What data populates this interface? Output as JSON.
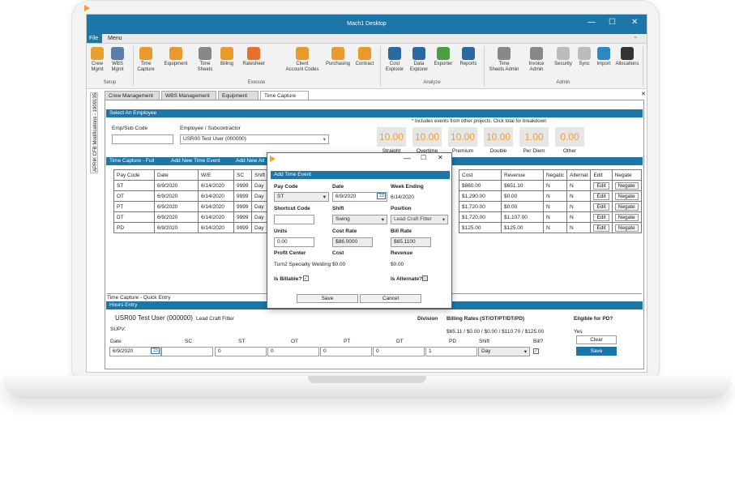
{
  "window": {
    "title": "Mach1 Desktop",
    "min": "—",
    "max": "☐",
    "close": "✕"
  },
  "menu": {
    "file": "File",
    "menu": "Menu"
  },
  "ribbon": {
    "buttons": [
      {
        "name": "crew-mgmt",
        "label": "Crew\nMgmt",
        "color": "#e8a030"
      },
      {
        "name": "wbs-mgmt",
        "label": "WBS\nMgmt",
        "color": "#5a7fa8"
      },
      {
        "name": "time-capture",
        "label": "Time\nCapture",
        "color": "#e89a2a"
      },
      {
        "name": "equipment",
        "label": "Equipment",
        "color": "#e89a2a"
      },
      {
        "name": "time-sheets",
        "label": "Time\nSheets",
        "color": "#888"
      },
      {
        "name": "billing",
        "label": "Billing",
        "color": "#e89a2a"
      },
      {
        "name": "ratesheet",
        "label": "Ratesheet",
        "color": "#e8702a"
      },
      {
        "name": "client-account-codes",
        "label": "Client\nAccount Codes",
        "color": "#e89a2a"
      },
      {
        "name": "purchasing",
        "label": "Purchasing",
        "color": "#e89a2a"
      },
      {
        "name": "contract",
        "label": "Contract",
        "color": "#e89a2a"
      },
      {
        "name": "cost-explorer",
        "label": "Cost\nExplorer",
        "color": "#2a6aa0"
      },
      {
        "name": "data-explorer",
        "label": "Data\nExplorer",
        "color": "#2a6aa0"
      },
      {
        "name": "exporter",
        "label": "Exporter",
        "color": "#4aa040"
      },
      {
        "name": "reports",
        "label": "Reports",
        "color": "#2a6aa0"
      },
      {
        "name": "time-sheets-admin",
        "label": "Time\nSheets Admin",
        "color": "#888"
      },
      {
        "name": "invoice-admin",
        "label": "Invoice\nAdmin",
        "color": "#888"
      },
      {
        "name": "security",
        "label": "Security",
        "color": "#bbb"
      },
      {
        "name": "sync",
        "label": "Sync",
        "color": "#bbb"
      },
      {
        "name": "import",
        "label": "Import",
        "color": "#2a8ac0"
      },
      {
        "name": "allocations",
        "label": "Allocations",
        "color": "#333"
      }
    ],
    "groups": {
      "setup": "Setup",
      "execute": "Execute",
      "analyze": "Analyze",
      "admin": "Admin"
    }
  },
  "tabs": [
    "Crew Management",
    "WBS Management",
    "Equipment",
    "Time Capture"
  ],
  "tab_close": "✕",
  "side_tab": "APRIK CFB Modifications - 1909135",
  "select_employee": {
    "header": "Select An Employee",
    "emp_label": "Emp/Sub Code",
    "emp_value": "",
    "employee_label": "Employee / Subcontractor",
    "employee_value": "USR00 Test User (000000)",
    "note": "* Includes events from other projects. Click total for breakdown",
    "totals": [
      {
        "value": "10.00",
        "label": "Straight"
      },
      {
        "value": "10.00",
        "label": "Overtime"
      },
      {
        "value": "10.00",
        "label": "Premium"
      },
      {
        "value": "10.00",
        "label": "Double"
      },
      {
        "value": "1.00",
        "label": "Per Diem"
      },
      {
        "value": "0.00",
        "label": "Other"
      }
    ]
  },
  "time_capture": {
    "header": "Time Capture - Full",
    "add_new": "Add New Time Event",
    "add_new2": "Add New Alt",
    "columns_left": [
      "Pay Code",
      "Date",
      "W/E",
      "SC",
      "Shift"
    ],
    "columns_right": [
      "Cost",
      "Revenue",
      "Negatic",
      "Alternat",
      "Edit",
      "Negate"
    ],
    "rows": [
      {
        "pay": "ST",
        "date": "6/9/2020",
        "we": "6/14/2020",
        "sc": "9999",
        "shift": "Day",
        "cost": "$860.00",
        "revenue": "$651.10",
        "neg": "N",
        "alt": "N"
      },
      {
        "pay": "OT",
        "date": "6/9/2020",
        "we": "6/14/2020",
        "sc": "9999",
        "shift": "Day",
        "cost": "$1,290.00",
        "revenue": "$0.00",
        "neg": "N",
        "alt": "N"
      },
      {
        "pay": "PT",
        "date": "6/9/2020",
        "we": "6/14/2020",
        "sc": "9999",
        "shift": "Day",
        "cost": "$1,720.00",
        "revenue": "$0.00",
        "neg": "N",
        "alt": "N"
      },
      {
        "pay": "DT",
        "date": "6/9/2020",
        "we": "6/14/2020",
        "sc": "9999",
        "shift": "Day",
        "cost": "$1,720.00",
        "revenue": "$1,107.00",
        "neg": "N",
        "alt": "N"
      },
      {
        "pay": "PD",
        "date": "6/9/2020",
        "we": "6/14/2020",
        "sc": "9999",
        "shift": "Day",
        "cost": "$125.00",
        "revenue": "$125.00",
        "neg": "N",
        "alt": "N"
      }
    ],
    "edit_label": "Edit",
    "negate_label": "Negate"
  },
  "quick_entry": {
    "header": "Time Capture - Quick Entry",
    "hours_header": "Hours Entry",
    "employee": "USR00 Test User (000000)",
    "position": "Lead Craft Fitter",
    "supv": "SUPV:",
    "division": "Division",
    "billing_rates_label": "Billing Rates (ST/OT/PT/DT/PD)",
    "billing_rates": "$65.11 / $0.00 / $0.00 / $110.70 / $125.00",
    "pd_label": "Eligible for PD?",
    "pd_value": "Yes",
    "cols": [
      "Date",
      "SC",
      "ST",
      "OT",
      "PT",
      "DT",
      "PD",
      "Shift",
      "Bill?"
    ],
    "values": {
      "date": "6/9/2020",
      "sc": "",
      "st": "0",
      "ot": "0",
      "pt": "0",
      "dt": "0",
      "pd": "1",
      "shift": "Day"
    },
    "clear": "Clear",
    "save": "Save"
  },
  "dialog": {
    "header": "Add Time Event",
    "pay_code_label": "Pay Code",
    "pay_code": "ST",
    "date_label": "Date",
    "date": "6/9/2020",
    "week_ending_label": "Week Ending",
    "week_ending": "6/14/2020",
    "shortcut_label": "Shortcut Code",
    "shortcut": "",
    "shift_label": "Shift",
    "shift": "Swing",
    "position_label": "Position",
    "position": "Lead Craft Fitter",
    "units_label": "Units",
    "units": "0.00",
    "cost_rate_label": "Cost Rate",
    "cost_rate": "$86.0000",
    "bill_rate_label": "Bill Rate",
    "bill_rate": "$65.1100",
    "profit_center_label": "Profit Center",
    "profit_center": "Turn2 Specialty Welding",
    "cost_label": "Cost",
    "cost": "$0.00",
    "revenue_label": "Revenue",
    "revenue": "$0.00",
    "billable_label": "Is Billable?",
    "alternate_label": "Is Alternate?",
    "save": "Save",
    "cancel": "Cancel",
    "calendar_day": "15"
  }
}
